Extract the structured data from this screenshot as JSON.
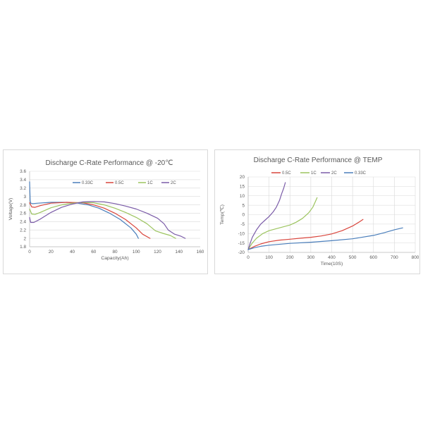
{
  "colors": {
    "series_0": "#4a7ebb",
    "series_1": "#d9453c",
    "series_2": "#9cc45f",
    "series_3": "#7b5ca8",
    "grid": "#d9d9d9",
    "text": "#595959"
  },
  "chart_data": [
    {
      "type": "line",
      "title": "Discharge C-Rate Performance @ -20℃",
      "xlabel": "Capacity(Ah)",
      "ylabel": "Voltage(V)",
      "xlim": [
        0,
        160
      ],
      "ylim": [
        1.8,
        3.6
      ],
      "x_ticks": [
        "0",
        "20",
        "40",
        "60",
        "80",
        "100",
        "120",
        "140",
        "160"
      ],
      "y_ticks": [
        "1.8",
        "2",
        "2.2",
        "2.4",
        "2.6",
        "2.8",
        "3",
        "3.2",
        "3.4",
        "3.6"
      ],
      "grid": "horizontal",
      "legend_position": "top",
      "series": [
        {
          "name": "0.33C",
          "color": "#4a7ebb",
          "points": [
            [
              0,
              3.35
            ],
            [
              0.5,
              2.9
            ],
            [
              1,
              2.84
            ],
            [
              3,
              2.83
            ],
            [
              8,
              2.84
            ],
            [
              20,
              2.86
            ],
            [
              35,
              2.86
            ],
            [
              45,
              2.84
            ],
            [
              55,
              2.8
            ],
            [
              65,
              2.72
            ],
            [
              75,
              2.6
            ],
            [
              85,
              2.45
            ],
            [
              95,
              2.25
            ],
            [
              100,
              2.1
            ],
            [
              102,
              2.0
            ]
          ]
        },
        {
          "name": "0.5C",
          "color": "#d9453c",
          "points": [
            [
              0,
              2.85
            ],
            [
              2,
              2.75
            ],
            [
              5,
              2.74
            ],
            [
              10,
              2.78
            ],
            [
              20,
              2.84
            ],
            [
              35,
              2.86
            ],
            [
              50,
              2.85
            ],
            [
              60,
              2.8
            ],
            [
              70,
              2.72
            ],
            [
              80,
              2.6
            ],
            [
              90,
              2.45
            ],
            [
              100,
              2.25
            ],
            [
              106,
              2.1
            ],
            [
              113,
              2.0
            ]
          ]
        },
        {
          "name": "1C",
          "color": "#9cc45f",
          "points": [
            [
              0,
              2.7
            ],
            [
              2,
              2.58
            ],
            [
              5,
              2.57
            ],
            [
              10,
              2.62
            ],
            [
              20,
              2.73
            ],
            [
              30,
              2.8
            ],
            [
              40,
              2.84
            ],
            [
              50,
              2.86
            ],
            [
              60,
              2.85
            ],
            [
              70,
              2.8
            ],
            [
              80,
              2.72
            ],
            [
              90,
              2.62
            ],
            [
              100,
              2.5
            ],
            [
              110,
              2.35
            ],
            [
              118,
              2.18
            ],
            [
              125,
              2.12
            ],
            [
              132,
              2.07
            ],
            [
              137,
              2.0
            ]
          ]
        },
        {
          "name": "2C",
          "color": "#7b5ca8",
          "points": [
            [
              0,
              2.5
            ],
            [
              1,
              2.38
            ],
            [
              4,
              2.38
            ],
            [
              10,
              2.46
            ],
            [
              20,
              2.62
            ],
            [
              30,
              2.74
            ],
            [
              40,
              2.82
            ],
            [
              50,
              2.87
            ],
            [
              60,
              2.88
            ],
            [
              70,
              2.87
            ],
            [
              80,
              2.83
            ],
            [
              90,
              2.77
            ],
            [
              100,
              2.7
            ],
            [
              110,
              2.6
            ],
            [
              120,
              2.48
            ],
            [
              126,
              2.35
            ],
            [
              130,
              2.2
            ],
            [
              136,
              2.1
            ],
            [
              142,
              2.05
            ],
            [
              146,
              2.0
            ]
          ]
        }
      ]
    },
    {
      "type": "line",
      "title": "Discharge C-Rate Performance @ TEMP",
      "xlabel": "Time(10S)",
      "ylabel": "Temp(℃)",
      "xlim": [
        0,
        800
      ],
      "ylim": [
        -20,
        20
      ],
      "x_ticks": [
        "0",
        "100",
        "200",
        "300",
        "400",
        "500",
        "600",
        "700",
        "800"
      ],
      "y_ticks": [
        "-20",
        "-15",
        "-10",
        "-5",
        "0",
        "5",
        "10",
        "15",
        "20"
      ],
      "grid": "both",
      "legend_position": "top",
      "series": [
        {
          "name": "0.5C",
          "color": "#d9453c",
          "points": [
            [
              0,
              -18.5
            ],
            [
              30,
              -16.8
            ],
            [
              60,
              -15.5
            ],
            [
              100,
              -14.3
            ],
            [
              150,
              -13.5
            ],
            [
              200,
              -13.0
            ],
            [
              250,
              -12.5
            ],
            [
              300,
              -12.0
            ],
            [
              350,
              -11.3
            ],
            [
              400,
              -10.2
            ],
            [
              450,
              -8.5
            ],
            [
              500,
              -6.0
            ],
            [
              530,
              -4.0
            ],
            [
              550,
              -2.5
            ]
          ]
        },
        {
          "name": "1C",
          "color": "#9cc45f",
          "points": [
            [
              0,
              -18.5
            ],
            [
              20,
              -15
            ],
            [
              40,
              -12.5
            ],
            [
              70,
              -10
            ],
            [
              100,
              -8.5
            ],
            [
              150,
              -7
            ],
            [
              200,
              -5.5
            ],
            [
              230,
              -4
            ],
            [
              260,
              -2
            ],
            [
              290,
              1
            ],
            [
              310,
              4
            ],
            [
              320,
              6.5
            ],
            [
              330,
              9
            ]
          ]
        },
        {
          "name": "2C",
          "color": "#7b5ca8",
          "points": [
            [
              0,
              -18.5
            ],
            [
              10,
              -15
            ],
            [
              20,
              -12
            ],
            [
              40,
              -8
            ],
            [
              60,
              -5
            ],
            [
              80,
              -3
            ],
            [
              100,
              -1
            ],
            [
              120,
              1.5
            ],
            [
              135,
              4
            ],
            [
              150,
              7.5
            ],
            [
              160,
              11
            ],
            [
              170,
              14
            ],
            [
              178,
              17
            ]
          ]
        },
        {
          "name": "0.33C",
          "color": "#4a7ebb",
          "points": [
            [
              0,
              -18.5
            ],
            [
              30,
              -17.5
            ],
            [
              60,
              -16.8
            ],
            [
              100,
              -16.2
            ],
            [
              200,
              -15.2
            ],
            [
              300,
              -14.6
            ],
            [
              400,
              -13.8
            ],
            [
              500,
              -12.8
            ],
            [
              600,
              -11.0
            ],
            [
              650,
              -9.6
            ],
            [
              700,
              -8.0
            ],
            [
              740,
              -7.0
            ]
          ]
        }
      ]
    }
  ]
}
